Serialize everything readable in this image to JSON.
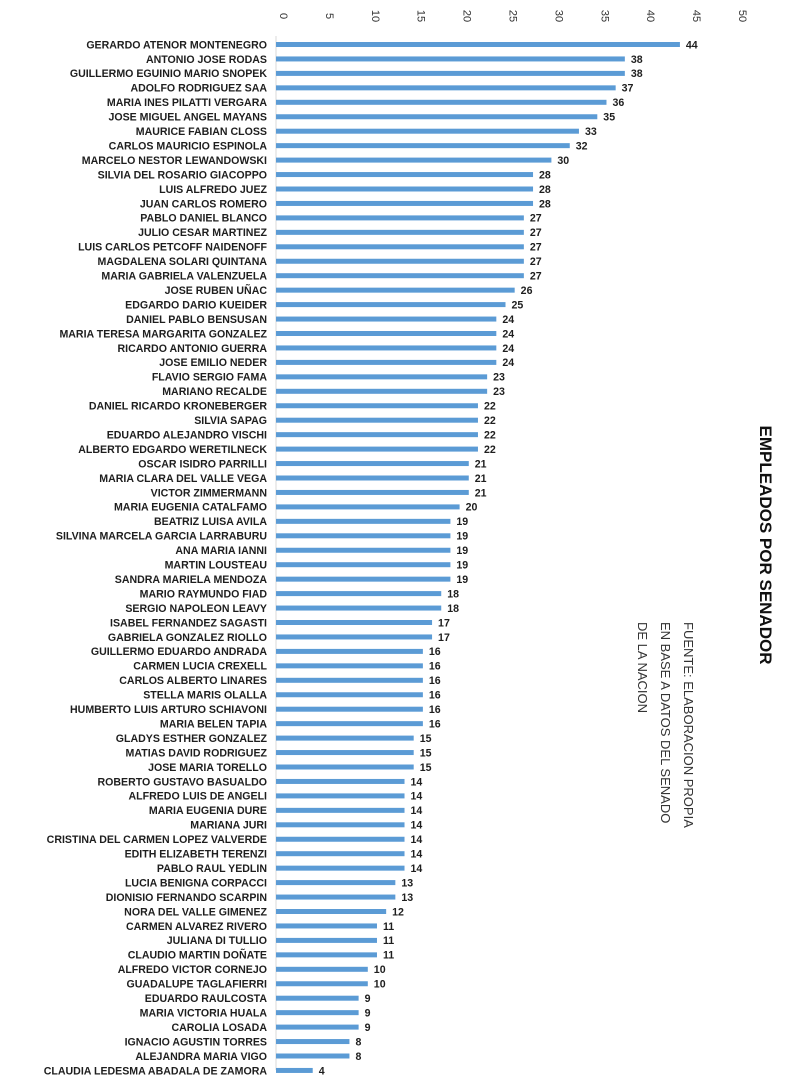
{
  "chart_data": {
    "type": "bar",
    "orientation": "horizontal",
    "title": "EMPLEADOS POR SENADOR",
    "source": [
      "FUENTE: ELABORACION PROPIA",
      "EN BASE A DATOS DEL SENADO",
      "DE LA NACION"
    ],
    "xlim": [
      0,
      50
    ],
    "ticks": [
      0,
      5,
      10,
      15,
      20,
      25,
      30,
      35,
      40,
      45,
      50
    ],
    "bar_color": "#5b9bd5",
    "grid": false,
    "data_labels": true,
    "categories": [
      "GERARDO ATENOR MONTENEGRO",
      "ANTONIO JOSE RODAS",
      "GUILLERMO EGUINIO MARIO SNOPEK",
      "ADOLFO RODRIGUEZ SAA",
      "MARIA INES PILATTI VERGARA",
      "JOSE MIGUEL ANGEL MAYANS",
      "MAURICE FABIAN CLOSS",
      "CARLOS MAURICIO ESPINOLA",
      "MARCELO NESTOR LEWANDOWSKI",
      "SILVIA DEL ROSARIO GIACOPPO",
      "LUIS ALFREDO JUEZ",
      "JUAN CARLOS ROMERO",
      "PABLO DANIEL BLANCO",
      "JULIO CESAR MARTINEZ",
      "LUIS CARLOS PETCOFF NAIDENOFF",
      "MAGDALENA SOLARI QUINTANA",
      "MARIA GABRIELA VALENZUELA",
      "JOSE RUBEN UÑAC",
      "EDGARDO DARIO KUEIDER",
      "DANIEL PABLO BENSUSAN",
      "MARIA TERESA MARGARITA GONZALEZ",
      "RICARDO ANTONIO GUERRA",
      "JOSE EMILIO NEDER",
      "FLAVIO SERGIO FAMA",
      "MARIANO RECALDE",
      "DANIEL RICARDO KRONEBERGER",
      "SILVIA SAPAG",
      "EDUARDO ALEJANDRO VISCHI",
      "ALBERTO EDGARDO WERETILNECK",
      "OSCAR ISIDRO PARRILLI",
      "MARIA CLARA DEL VALLE VEGA",
      "VICTOR ZIMMERMANN",
      "MARIA EUGENIA CATALFAMO",
      "BEATRIZ LUISA AVILA",
      "SILVINA MARCELA GARCIA LARRABURU",
      "ANA MARIA IANNI",
      "MARTIN LOUSTEAU",
      "SANDRA MARIELA MENDOZA",
      "MARIO RAYMUNDO FIAD",
      "SERGIO NAPOLEON LEAVY",
      "ISABEL FERNANDEZ SAGASTI",
      "GABRIELA GONZALEZ RIOLLO",
      "GUILLERMO EDUARDO ANDRADA",
      "CARMEN LUCIA CREXELL",
      "CARLOS ALBERTO LINARES",
      "STELLA MARIS OLALLA",
      "HUMBERTO LUIS ARTURO SCHIAVONI",
      "MARIA BELEN TAPIA",
      "GLADYS ESTHER GONZALEZ",
      "MATIAS DAVID RODRIGUEZ",
      "JOSE MARIA TORELLO",
      "ROBERTO GUSTAVO BASUALDO",
      "ALFREDO LUIS DE ANGELI",
      "MARIA EUGENIA DURE",
      "MARIANA JURI",
      "CRISTINA DEL CARMEN LOPEZ VALVERDE",
      "EDITH ELIZABETH TERENZI",
      "PABLO RAUL YEDLIN",
      "LUCIA BENIGNA CORPACCI",
      "DIONISIO FERNANDO SCARPIN",
      "NORA DEL VALLE GIMENEZ",
      "CARMEN ALVAREZ RIVERO",
      "JULIANA DI TULLIO",
      "CLAUDIO MARTIN DOÑATE",
      "ALFREDO VICTOR CORNEJO",
      "GUADALUPE TAGLAFIERRI",
      "EDUARDO RAULCOSTA",
      "MARIA VICTORIA HUALA",
      "CAROLIA LOSADA",
      "IGNACIO AGUSTIN TORRES",
      "ALEJANDRA MARIA VIGO",
      "CLAUDIA LEDESMA ABADALA DE ZAMORA"
    ],
    "values": [
      44,
      38,
      38,
      37,
      36,
      35,
      33,
      32,
      30,
      28,
      28,
      28,
      27,
      27,
      27,
      27,
      27,
      26,
      25,
      24,
      24,
      24,
      24,
      23,
      23,
      22,
      22,
      22,
      22,
      21,
      21,
      21,
      20,
      19,
      19,
      19,
      19,
      19,
      18,
      18,
      17,
      17,
      16,
      16,
      16,
      16,
      16,
      16,
      15,
      15,
      15,
      14,
      14,
      14,
      14,
      14,
      14,
      14,
      13,
      13,
      12,
      11,
      11,
      11,
      10,
      10,
      9,
      9,
      9,
      8,
      8,
      4
    ]
  }
}
